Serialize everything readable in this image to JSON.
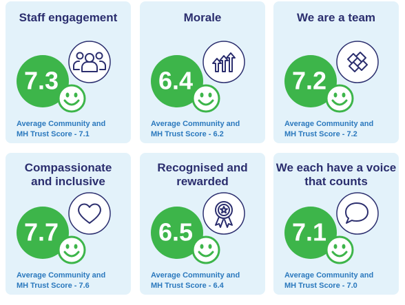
{
  "cards": [
    {
      "title": [
        "Staff engagement"
      ],
      "score": 7.3,
      "note": [
        "Average Community and",
        "MH Trust Score - 7.1"
      ]
    },
    {
      "title": [
        "Morale"
      ],
      "score": 6.4,
      "note": [
        "Average Community and",
        "MH Trust Score - 6.2"
      ]
    },
    {
      "title": [
        "We are a team"
      ],
      "score": 7.2,
      "note": [
        "Average Community and",
        "MH Trust Score - 7.2"
      ]
    },
    {
      "title": [
        "Compassionate",
        "and inclusive"
      ],
      "score": 7.7,
      "note": [
        "Average Community and",
        "MH Trust Score - 7.6"
      ]
    },
    {
      "title": [
        "Recognised and",
        "rewarded"
      ],
      "score": 6.5,
      "note": [
        "Average Community and",
        "MH Trust Score - 6.4"
      ]
    },
    {
      "title": [
        "We each have a voice",
        "that counts"
      ],
      "score": 7.1,
      "note": [
        "Average Community and",
        "MH Trust Score - 7.0"
      ]
    }
  ]
}
